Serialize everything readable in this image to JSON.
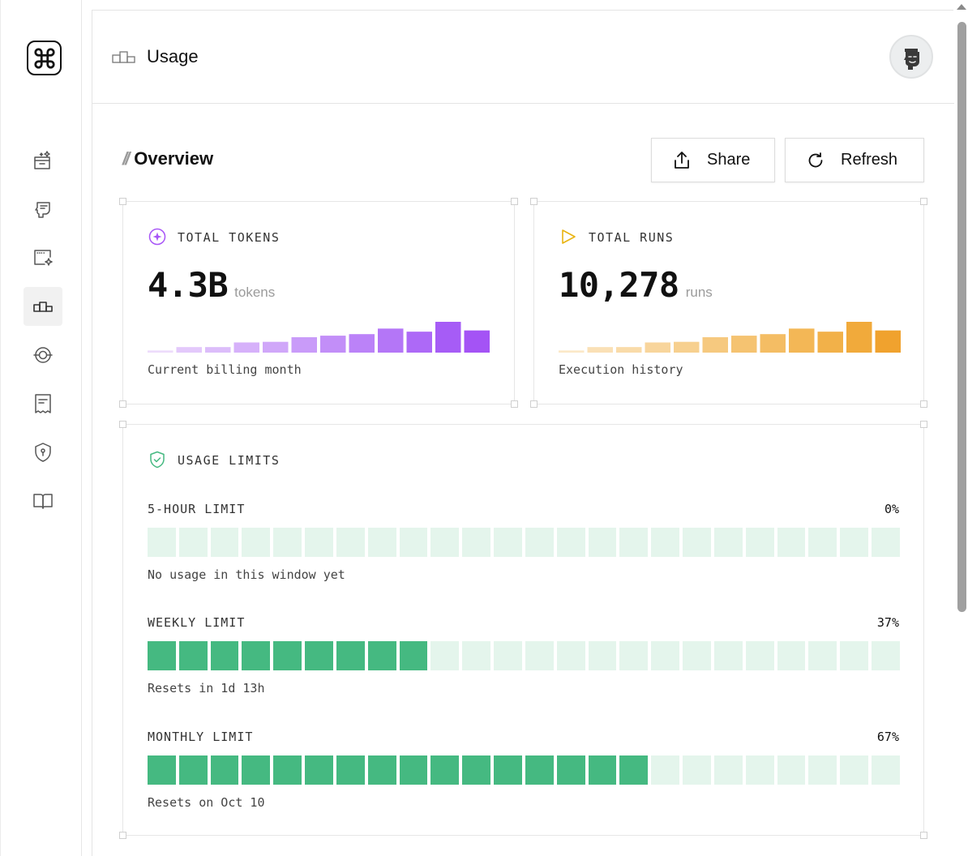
{
  "header": {
    "title": "Usage",
    "avatar_alt": "user avatar"
  },
  "overview": {
    "title": "Overview",
    "share_label": "Share",
    "refresh_label": "Refresh"
  },
  "tokens_card": {
    "label": "TOTAL TOKENS",
    "value": "4.3B",
    "unit": "tokens",
    "caption": "Current billing month",
    "bars": [
      0.07,
      0.18,
      0.18,
      0.33,
      0.35,
      0.5,
      0.55,
      0.6,
      0.78,
      0.68,
      1.0,
      0.72
    ],
    "colors": [
      "#eddcfb",
      "#e3c9fb",
      "#dcbdfa",
      "#d6b1fa",
      "#d0a7f9",
      "#c99bf9",
      "#c28ef8",
      "#bb82f8",
      "#b476f7",
      "#ad69f7",
      "#a65cf6",
      "#a453f5"
    ]
  },
  "runs_card": {
    "label": "TOTAL RUNS",
    "value": "10,278",
    "unit": "runs",
    "caption": "Execution history",
    "bars": [
      0.07,
      0.18,
      0.18,
      0.33,
      0.35,
      0.5,
      0.55,
      0.6,
      0.78,
      0.68,
      1.0,
      0.72
    ],
    "colors": [
      "#fbe8c8",
      "#fae0b6",
      "#f9dba9",
      "#f8d59c",
      "#f7d08f",
      "#f6c97f",
      "#f5c371",
      "#f4bd64",
      "#f3b756",
      "#f2b149",
      "#f1aa3b",
      "#f0a22e"
    ]
  },
  "limits": {
    "title": "USAGE LIMITS",
    "items": [
      {
        "name": "5-HOUR LIMIT",
        "percent_label": "0%",
        "filled_segments": 0,
        "total_segments": 24,
        "note": "No usage in this window yet"
      },
      {
        "name": "WEEKLY LIMIT",
        "percent_label": "37%",
        "filled_segments": 9,
        "total_segments": 24,
        "note": "Resets in 1d 13h"
      },
      {
        "name": "MONTHLY LIMIT",
        "percent_label": "67%",
        "filled_segments": 16,
        "total_segments": 24,
        "note": "Resets on Oct 10"
      }
    ]
  },
  "nav": [
    "cmd-logo",
    "projects-icon",
    "agents-icon",
    "playground-icon",
    "usage-icon",
    "integrations-icon",
    "billing-icon",
    "security-icon",
    "docs-icon"
  ]
}
